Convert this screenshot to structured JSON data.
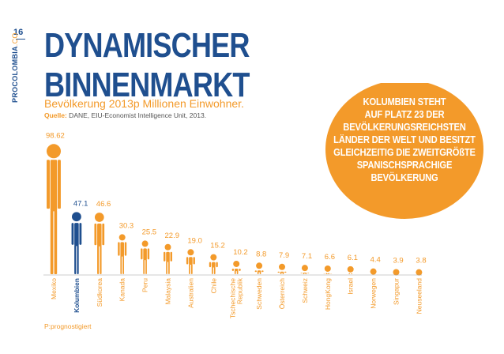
{
  "page": {
    "number": "16",
    "brand_bold": "PROCOLOMBIA",
    "brand_thin": ".CO",
    "title_line1": "DYNAMISCHER",
    "title_line2": "BINNENMARKT",
    "subtitle": "Bevölkerung 2013p Millionen Einwohner.",
    "source_label": "Quelle:",
    "source_text": " DANE, EIU-Economist Intelligence Unit, 2013.",
    "footnote": "P:prognostigiert",
    "callout_lines": [
      "KOLUMBIEN STEHT",
      "AUF PLATZ 23 DER",
      "BEVÖLKERUNGSREICHSTEN",
      "LÄNDER DER WELT UND BESITZT",
      "GLEICHZEITIG DIE ZWEITGRÖßTE",
      "SPANISCHSPRACHIGE",
      "BEVÖLKERUNG"
    ]
  },
  "colors": {
    "orange": "#f39a2a",
    "blue": "#1f4f8f",
    "grey_text": "#555555"
  },
  "chart_data": {
    "type": "bar",
    "title": "Bevölkerung 2013p Millionen Einwohner.",
    "categories": [
      "Mexiko",
      "Kolumbien",
      "Südkorea",
      "Kanada",
      "Peru",
      "Malaysia",
      "Australien",
      "Chile",
      "Tschechische Republik",
      "Schweden",
      "Österreich",
      "Schweiz",
      "HongKong",
      "Israel",
      "Norwegen",
      "Singapur",
      "Neuseeland"
    ],
    "values": [
      98.62,
      47.1,
      46.6,
      30.3,
      25.5,
      22.9,
      19.0,
      15.2,
      10.2,
      8.8,
      7.9,
      7.1,
      6.6,
      6.1,
      4.4,
      3.9,
      3.8
    ],
    "value_labels": [
      "98.62",
      "47.1",
      "46.6",
      "30.3",
      "25.5",
      "22.9",
      "19.0",
      "15.2",
      "10.2",
      "8.8",
      "7.9",
      "7.1",
      "6.6",
      "6.1",
      "4.4",
      "3.9",
      "3.8"
    ],
    "category_labels": [
      [
        "Mexiko"
      ],
      [
        "Kolumbien"
      ],
      [
        "Südkorea"
      ],
      [
        "Kanada"
      ],
      [
        "Peru"
      ],
      [
        "Malaysia"
      ],
      [
        "Australien"
      ],
      [
        "Chile"
      ],
      [
        "Tschechische",
        "Republik"
      ],
      [
        "Schweden"
      ],
      [
        "Österreich"
      ],
      [
        "Schweiz"
      ],
      [
        "HongKong"
      ],
      [
        "Israel"
      ],
      [
        "Norwegen"
      ],
      [
        "Singapur"
      ],
      [
        "Neuseeland"
      ]
    ],
    "highlight": "Kolumbien",
    "unit": "Millionen Einwohner",
    "marker": "person-icon",
    "xlabel": "",
    "ylabel": ""
  }
}
